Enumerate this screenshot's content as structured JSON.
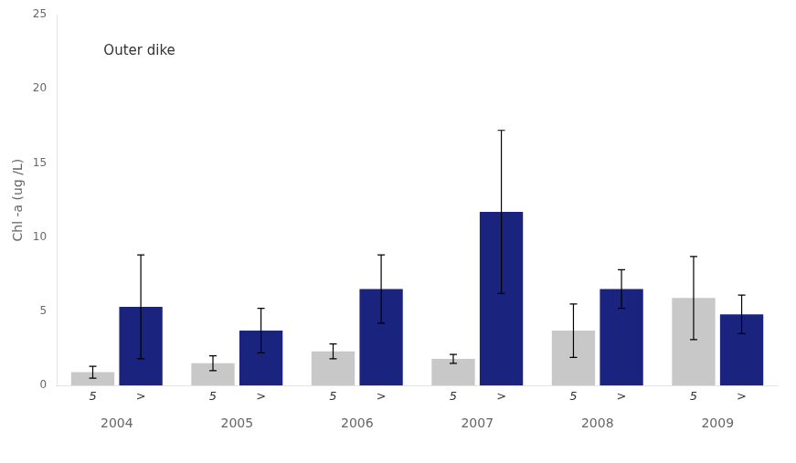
{
  "chart_data": {
    "type": "bar",
    "categories": [
      "2004",
      "2005",
      "2006",
      "2007",
      "2008",
      "2009"
    ],
    "series": [
      {
        "name": "5",
        "color": "#c8c8c8",
        "values": [
          0.9,
          1.5,
          2.3,
          1.8,
          3.7,
          5.9
        ],
        "errors": [
          0.4,
          0.5,
          0.5,
          0.3,
          1.8,
          2.8
        ]
      },
      {
        "name": ">",
        "color": "#1a237e",
        "values": [
          5.3,
          3.7,
          6.5,
          11.7,
          6.5,
          4.8
        ],
        "errors": [
          3.5,
          1.5,
          2.3,
          5.5,
          1.3,
          1.3
        ]
      }
    ],
    "ylabel": "Chl -a (ug /L)",
    "annotation": "Outer dike",
    "ylim": [
      0,
      25
    ],
    "yticks": [
      0,
      5,
      10,
      15,
      20,
      25
    ],
    "grid": false
  }
}
